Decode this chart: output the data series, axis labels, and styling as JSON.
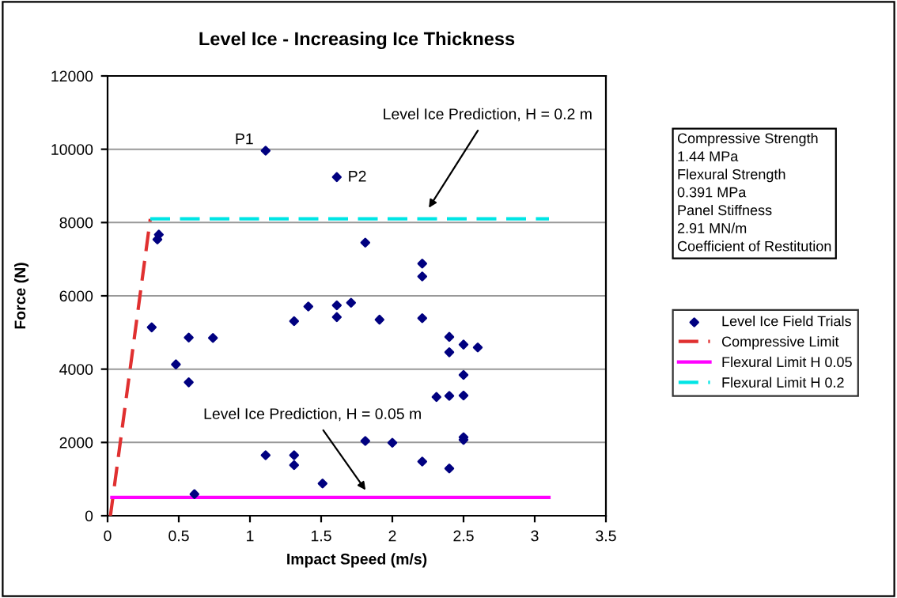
{
  "chart_data": {
    "type": "scatter",
    "title": "Level Ice - Increasing Ice Thickness",
    "xlabel": "Impact Speed (m/s)",
    "ylabel": "Force (N)",
    "xlim": [
      0,
      3.5
    ],
    "xticks": [
      0,
      0.5,
      1,
      1.5,
      2,
      2.5,
      3,
      3.5
    ],
    "ylim": [
      0,
      12000
    ],
    "yticks": [
      0,
      2000,
      4000,
      6000,
      8000,
      10000,
      12000
    ],
    "grid": "y",
    "legend": "right",
    "series": [
      {
        "name": "Level Ice Field Trials",
        "color": "#000080",
        "marker": "diamond",
        "x": [
          0.31,
          0.36,
          0.35,
          0.48,
          0.57,
          0.57,
          0.74,
          0.61,
          1.11,
          1.61,
          1.81,
          1.31,
          1.41,
          1.61,
          1.61,
          1.71,
          1.91,
          1.11,
          1.31,
          1.31,
          1.51,
          1.81,
          2.0,
          2.21,
          2.21,
          2.21,
          2.4,
          2.5,
          2.6,
          2.4,
          2.5,
          2.31,
          2.4,
          2.5,
          2.5,
          2.5,
          2.21,
          2.4
        ],
        "values": [
          5140,
          7670,
          7540,
          4130,
          4860,
          3640,
          4850,
          590,
          9960,
          9240,
          7450,
          5310,
          5710,
          5740,
          5420,
          5810,
          5350,
          1650,
          1650,
          1380,
          880,
          2040,
          1990,
          6880,
          6530,
          5390,
          4880,
          4670,
          4590,
          4460,
          3840,
          3240,
          3270,
          3280,
          2140,
          2070,
          1480,
          1290
        ]
      },
      {
        "name": "Compressive Limit",
        "type": "line",
        "color": "#e03030",
        "line_style": "dashed",
        "x": [
          0.02,
          0.3
        ],
        "values": [
          0,
          8100
        ]
      },
      {
        "name": "Flexural Limit H 0.05",
        "type": "line",
        "color": "#ff00ff",
        "line_style": "solid",
        "x": [
          0.03,
          3.1
        ],
        "values": [
          500,
          500
        ]
      },
      {
        "name": "Flexural Limit H 0.2",
        "type": "line",
        "color": "#00e5e5",
        "line_style": "dashed",
        "x": [
          0.3,
          3.1
        ],
        "values": [
          8100,
          8100
        ]
      }
    ],
    "annotations": [
      {
        "text": "P1",
        "x": 1.11,
        "y": 9960
      },
      {
        "text": "P2",
        "x": 1.61,
        "y": 9240
      },
      {
        "text": "Level Ice Prediction, H = 0.2 m",
        "x": 2.24,
        "y": 8300
      },
      {
        "text": "Level Ice Prediction, H = 0.05 m",
        "x": 1.83,
        "y": 600
      },
      "Compressive Strength\n1.44 MPa\nFlexural Strength\n0.391 MPa\nPanel Stiffness\n2.91 MN/m\nCoefficient of Restitution"
    ]
  }
}
